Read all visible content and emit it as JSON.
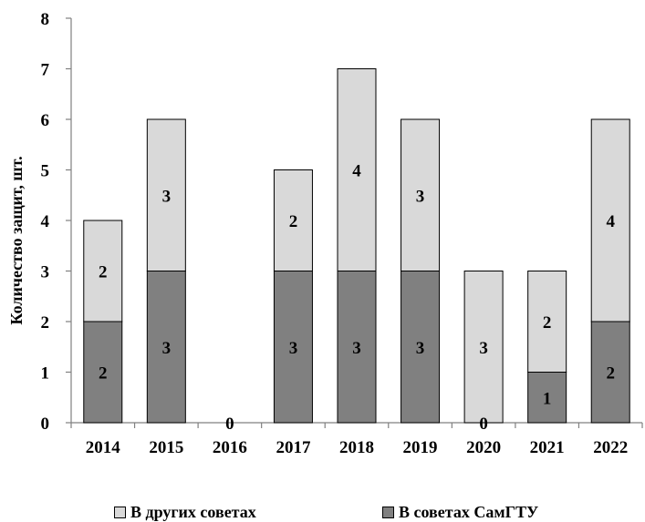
{
  "chart_data": {
    "type": "bar",
    "stacked": true,
    "categories": [
      "2014",
      "2015",
      "2016",
      "2017",
      "2018",
      "2019",
      "2020",
      "2021",
      "2022"
    ],
    "series": [
      {
        "name": "В советах СамГТУ",
        "values": [
          2,
          3,
          0,
          3,
          3,
          3,
          0,
          1,
          2
        ],
        "color": "#808080"
      },
      {
        "name": "В других советах",
        "values": [
          2,
          3,
          0,
          2,
          4,
          3,
          3,
          2,
          4
        ],
        "color": "#d9d9d9"
      }
    ],
    "ylabel": "Количество защит, шт.",
    "xlabel": "",
    "title": "",
    "ylim": [
      0,
      8
    ],
    "yticks": [
      "0",
      "1",
      "2",
      "3",
      "4",
      "5",
      "6",
      "7",
      "8"
    ],
    "zero_labels": [
      "0",
      "0"
    ],
    "grid": false,
    "legend_position": "bottom"
  }
}
